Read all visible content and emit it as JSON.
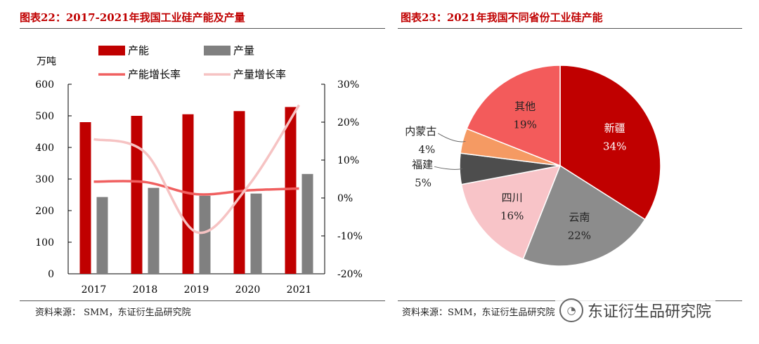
{
  "left_panel": {
    "title": "图表22：2017-2021年我国工业硅产能及产量",
    "source": "资料来源：  SMM，东证衍生品研究院"
  },
  "right_panel": {
    "title": "图表23：2021年我国不同省份工业硅产能",
    "source": "资料来源：SMM，东证衍生品研究院"
  },
  "watermark": {
    "text": "东证衍生品研究院",
    "logo_icon": "wechat-icon"
  },
  "colors": {
    "capacity": "#c00000",
    "output": "#808080",
    "capacity_growth": "#f06060",
    "output_growth": "#f6c3c3"
  },
  "chart_data": [
    {
      "type": "bar",
      "title": "2017-2021年我国工业硅产能及产量",
      "unit_label": "万吨",
      "categories": [
        "2017",
        "2018",
        "2019",
        "2020",
        "2021"
      ],
      "series": [
        {
          "name": "产能",
          "kind": "bar",
          "axis": "left",
          "values": [
            480,
            500,
            505,
            515,
            528
          ]
        },
        {
          "name": "产量",
          "kind": "bar",
          "axis": "left",
          "values": [
            243,
            272,
            247,
            254,
            316
          ]
        },
        {
          "name": "产能增长率",
          "kind": "line",
          "axis": "right",
          "values": [
            4.3,
            4.2,
            1.0,
            2.0,
            2.5
          ]
        },
        {
          "name": "产量增长率",
          "kind": "line",
          "axis": "right",
          "values": [
            15.5,
            12.0,
            -9.0,
            3.0,
            24.5
          ]
        }
      ],
      "ylim": [
        0,
        600
      ],
      "yticks": [
        0,
        100,
        200,
        300,
        400,
        500,
        600
      ],
      "y2lim": [
        -20,
        30
      ],
      "y2ticks": [
        "-20%",
        "-10%",
        "0%",
        "10%",
        "20%",
        "30%"
      ],
      "legend": "top"
    },
    {
      "type": "pie",
      "title": "2021年我国不同省份工业硅产能",
      "slices": [
        {
          "label": "新疆",
          "value": 34,
          "text": "34%",
          "color": "#c00000"
        },
        {
          "label": "云南",
          "value": 22,
          "text": "22%",
          "color": "#8c8c8c"
        },
        {
          "label": "四川",
          "value": 16,
          "text": "16%",
          "color": "#f8c4c8"
        },
        {
          "label": "福建",
          "value": 5,
          "text": "5%",
          "color": "#4d4d4d"
        },
        {
          "label": "内蒙古",
          "value": 4,
          "text": "4%",
          "color": "#f59a63"
        },
        {
          "label": "其他",
          "value": 19,
          "text": "19%",
          "color": "#f35b5b"
        }
      ]
    }
  ]
}
